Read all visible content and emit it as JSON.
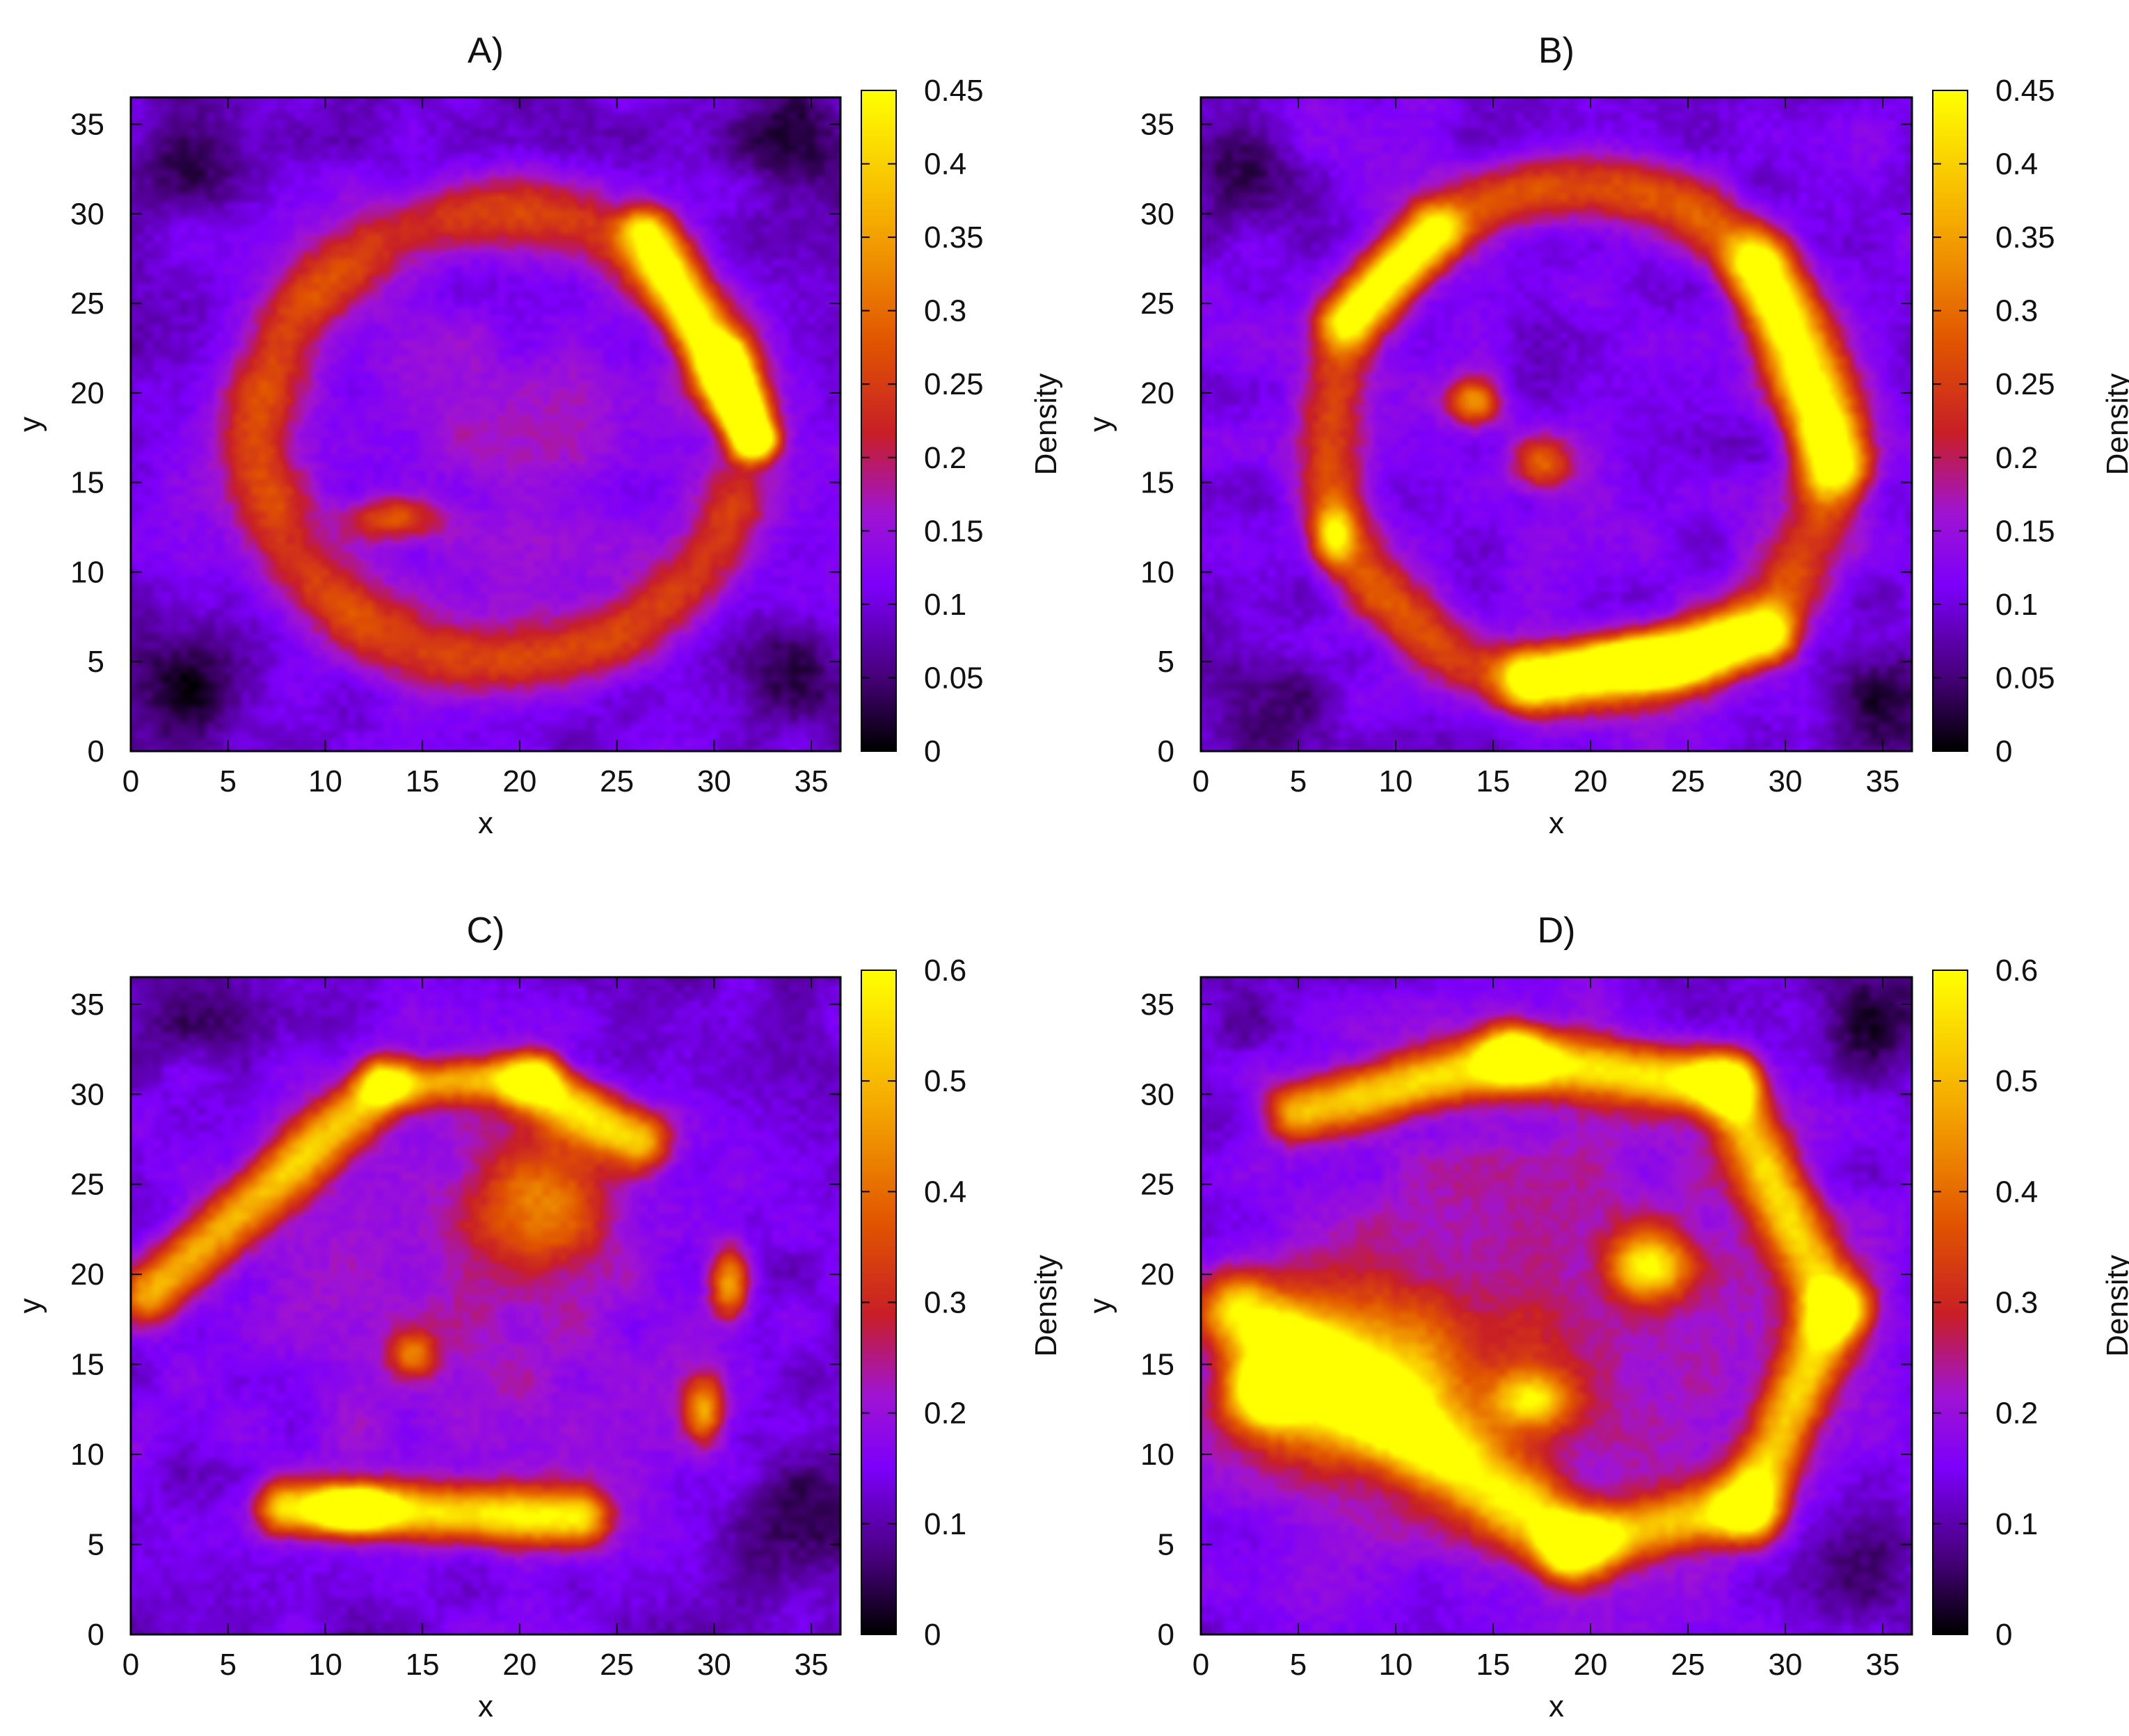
{
  "chart_data": [
    {
      "type": "heatmap",
      "title": "A)",
      "xlabel": "x",
      "ylabel": "y",
      "xlim": [
        0,
        36.5
      ],
      "ylim": [
        0,
        36.5
      ],
      "xticks": [
        0,
        5,
        10,
        15,
        20,
        25,
        30,
        35
      ],
      "yticks": [
        0,
        5,
        10,
        15,
        20,
        25,
        30,
        35
      ],
      "colorbar": {
        "label": "Density",
        "range": [
          0,
          0.45
        ],
        "ticks": [
          "0",
          "0.05",
          "0.1",
          "0.15",
          "0.2",
          "0.25",
          "0.3",
          "0.35",
          "0.4",
          "0.45"
        ]
      },
      "background": 0.1,
      "features": [
        {
          "kind": "arc",
          "cx": 19,
          "cy": 17.5,
          "rx": 12.5,
          "ry": 12.5,
          "a0": 20,
          "a1": 340,
          "width": 2.0,
          "value": 0.14
        },
        {
          "kind": "segment",
          "x0": 26.5,
          "y0": 29,
          "x1": 32,
          "y1": 17.5,
          "width": 1.3,
          "value": 0.3
        },
        {
          "kind": "segment",
          "x0": 30.5,
          "y0": 22,
          "x1": 32,
          "y1": 17.5,
          "width": 1.0,
          "value": 0.36
        },
        {
          "kind": "blob",
          "cx": 13.5,
          "cy": 13,
          "rx": 2.5,
          "ry": 1.2,
          "value": 0.16
        },
        {
          "kind": "blob",
          "cx": 19,
          "cy": 17,
          "rx": 11,
          "ry": 11,
          "value": 0.05
        },
        {
          "kind": "blob",
          "cx": 3,
          "cy": 4,
          "rx": 3,
          "ry": 3,
          "value": -0.08
        },
        {
          "kind": "blob",
          "cx": 34,
          "cy": 34,
          "rx": 3,
          "ry": 3,
          "value": -0.08
        },
        {
          "kind": "blob",
          "cx": 3,
          "cy": 33,
          "rx": 3,
          "ry": 3,
          "value": -0.08
        },
        {
          "kind": "blob",
          "cx": 34,
          "cy": 4,
          "rx": 3,
          "ry": 3,
          "value": -0.08
        }
      ]
    },
    {
      "type": "heatmap",
      "title": "B)",
      "xlabel": "x",
      "ylabel": "y",
      "xlim": [
        0,
        36.5
      ],
      "ylim": [
        0,
        36.5
      ],
      "xticks": [
        0,
        5,
        10,
        15,
        20,
        25,
        30,
        35
      ],
      "yticks": [
        0,
        5,
        10,
        15,
        20,
        25,
        30,
        35
      ],
      "colorbar": {
        "label": "Density",
        "range": [
          0,
          0.45
        ],
        "ticks": [
          "0",
          "0.05",
          "0.1",
          "0.15",
          "0.2",
          "0.25",
          "0.3",
          "0.35",
          "0.4",
          "0.45"
        ]
      },
      "background": 0.11,
      "features": [
        {
          "kind": "arc",
          "cx": 19.5,
          "cy": 17.5,
          "rx": 13,
          "ry": 14,
          "a0": 0,
          "a1": 360,
          "width": 1.8,
          "value": 0.16
        },
        {
          "kind": "segment",
          "x0": 7.5,
          "y0": 24,
          "x1": 12,
          "y1": 29,
          "width": 1.4,
          "value": 0.26
        },
        {
          "kind": "segment",
          "x0": 28.5,
          "y0": 27,
          "x1": 32.5,
          "y1": 16,
          "width": 1.6,
          "value": 0.3
        },
        {
          "kind": "segment",
          "x0": 17,
          "y0": 4,
          "x1": 29,
          "y1": 6.5,
          "width": 1.5,
          "value": 0.36
        },
        {
          "kind": "blob",
          "cx": 23,
          "cy": 4.8,
          "rx": 2.5,
          "ry": 1.0,
          "value": 0.45
        },
        {
          "kind": "blob",
          "cx": 14,
          "cy": 19.5,
          "rx": 1.3,
          "ry": 1.3,
          "value": 0.22
        },
        {
          "kind": "blob",
          "cx": 6.8,
          "cy": 12,
          "rx": 1.0,
          "ry": 1.6,
          "value": 0.24
        },
        {
          "kind": "blob",
          "cx": 17.5,
          "cy": 16,
          "rx": 1.5,
          "ry": 1.5,
          "value": 0.17
        },
        {
          "kind": "blob",
          "cx": 2,
          "cy": 32,
          "rx": 3,
          "ry": 3,
          "value": -0.09
        },
        {
          "kind": "blob",
          "cx": 35,
          "cy": 3,
          "rx": 3,
          "ry": 3,
          "value": -0.09
        },
        {
          "kind": "blob",
          "cx": 3,
          "cy": 3,
          "rx": 3,
          "ry": 3,
          "value": -0.08
        }
      ]
    },
    {
      "type": "heatmap",
      "title": "C)",
      "xlabel": "x",
      "ylabel": "y",
      "xlim": [
        0,
        36.5
      ],
      "ylim": [
        0,
        36.5
      ],
      "xticks": [
        0,
        5,
        10,
        15,
        20,
        25,
        30,
        35
      ],
      "yticks": [
        0,
        5,
        10,
        15,
        20,
        25,
        30,
        35
      ],
      "colorbar": {
        "label": "Density",
        "range": [
          0,
          0.6
        ],
        "ticks": [
          "0",
          "0.1",
          "0.2",
          "0.3",
          "0.4",
          "0.5",
          "0.6"
        ]
      },
      "background": 0.12,
      "features": [
        {
          "kind": "blob",
          "cx": 17,
          "cy": 18,
          "rx": 15,
          "ry": 13,
          "value": 0.1
        },
        {
          "kind": "segment",
          "x0": 1,
          "y0": 19,
          "x1": 13,
          "y1": 30.5,
          "width": 1.6,
          "value": 0.34
        },
        {
          "kind": "segment",
          "x0": 13,
          "y0": 30.5,
          "x1": 21,
          "y1": 31,
          "width": 1.2,
          "value": 0.3
        },
        {
          "kind": "segment",
          "x0": 20.5,
          "y0": 30.5,
          "x1": 26,
          "y1": 27.5,
          "width": 1.6,
          "value": 0.4
        },
        {
          "kind": "segment",
          "x0": 8,
          "y0": 7,
          "x1": 23,
          "y1": 6.5,
          "width": 1.5,
          "value": 0.42
        },
        {
          "kind": "blob",
          "cx": 11.5,
          "cy": 7,
          "rx": 1.8,
          "ry": 1.0,
          "value": 0.55
        },
        {
          "kind": "blob",
          "cx": 30.8,
          "cy": 19.5,
          "rx": 1.0,
          "ry": 2.0,
          "value": 0.34
        },
        {
          "kind": "blob",
          "cx": 29.5,
          "cy": 12.5,
          "rx": 1.0,
          "ry": 1.8,
          "value": 0.3
        },
        {
          "kind": "blob",
          "cx": 21,
          "cy": 24,
          "rx": 3.5,
          "ry": 4.0,
          "value": 0.22
        },
        {
          "kind": "blob",
          "cx": 14.5,
          "cy": 15.5,
          "rx": 1.2,
          "ry": 1.2,
          "value": 0.22
        },
        {
          "kind": "blob",
          "cx": 34,
          "cy": 6,
          "rx": 3,
          "ry": 3,
          "value": -0.1
        },
        {
          "kind": "blob",
          "cx": 3,
          "cy": 34,
          "rx": 3,
          "ry": 2,
          "value": -0.08
        }
      ]
    },
    {
      "type": "heatmap",
      "title": "D)",
      "xlabel": "x",
      "ylabel": "y",
      "xlim": [
        0,
        36.5
      ],
      "ylim": [
        0,
        36.5
      ],
      "xticks": [
        0,
        5,
        10,
        15,
        20,
        25,
        30,
        35
      ],
      "yticks": [
        0,
        5,
        10,
        15,
        20,
        25,
        30,
        35
      ],
      "colorbar": {
        "label": "Density",
        "range": [
          0,
          0.6
        ],
        "ticks": [
          "0",
          "0.1",
          "0.2",
          "0.3",
          "0.4",
          "0.5",
          "0.6"
        ]
      },
      "background": 0.13,
      "features": [
        {
          "kind": "blob",
          "cx": 18,
          "cy": 17,
          "rx": 15,
          "ry": 15,
          "value": 0.12
        },
        {
          "kind": "segment",
          "x0": 5,
          "y0": 29,
          "x1": 16,
          "y1": 32,
          "width": 1.6,
          "value": 0.38
        },
        {
          "kind": "segment",
          "x0": 16,
          "y0": 32,
          "x1": 27,
          "y1": 30.5,
          "width": 1.6,
          "value": 0.42
        },
        {
          "kind": "segment",
          "x0": 27,
          "y0": 30.5,
          "x1": 32.5,
          "y1": 18,
          "width": 1.6,
          "value": 0.36
        },
        {
          "kind": "segment",
          "x0": 32.5,
          "y0": 18,
          "x1": 28,
          "y1": 7,
          "width": 1.6,
          "value": 0.36
        },
        {
          "kind": "segment",
          "x0": 28,
          "y0": 7,
          "x1": 19,
          "y1": 5,
          "width": 1.6,
          "value": 0.36
        },
        {
          "kind": "segment",
          "x0": 19,
          "y0": 5,
          "x1": 2,
          "y1": 18,
          "width": 2.0,
          "value": 0.4
        },
        {
          "kind": "blob",
          "cx": 8,
          "cy": 14,
          "rx": 6,
          "ry": 5,
          "value": 0.34
        },
        {
          "kind": "blob",
          "cx": 3.5,
          "cy": 13.5,
          "rx": 2.0,
          "ry": 2.0,
          "value": 0.52
        },
        {
          "kind": "blob",
          "cx": 23,
          "cy": 20.5,
          "rx": 2.0,
          "ry": 1.8,
          "value": 0.36
        },
        {
          "kind": "blob",
          "cx": 17,
          "cy": 13,
          "rx": 2.0,
          "ry": 1.5,
          "value": 0.3
        },
        {
          "kind": "blob",
          "cx": 34,
          "cy": 34,
          "rx": 3,
          "ry": 3,
          "value": -0.1
        },
        {
          "kind": "blob",
          "cx": 2,
          "cy": 34,
          "rx": 2,
          "ry": 2,
          "value": -0.06
        },
        {
          "kind": "blob",
          "cx": 34,
          "cy": 3,
          "rx": 3,
          "ry": 3,
          "value": -0.08
        }
      ]
    }
  ]
}
